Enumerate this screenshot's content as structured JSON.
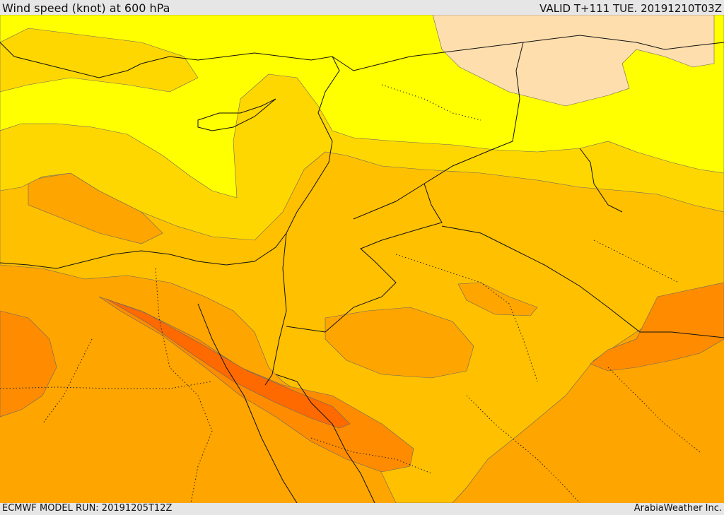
{
  "header": {
    "title": "Wind speed (knot) at 600 hPa",
    "valid": "VALID T+111 TUE. 20191210T03Z"
  },
  "footer": {
    "model_run": "ECMWF MODEL RUN: 20191205T12Z",
    "credit": "ArabiaWeather Inc."
  },
  "map": {
    "colors": {
      "calm_cream": "#ffdead",
      "light_yellow": "#ffff00",
      "gold": "#ffd700",
      "amber": "#ffc000",
      "orange": "#ffa500",
      "dark_orange": "#ff8c00",
      "jet_core": "#ff6a00",
      "jet_peak": "#ff5a00"
    }
  }
}
